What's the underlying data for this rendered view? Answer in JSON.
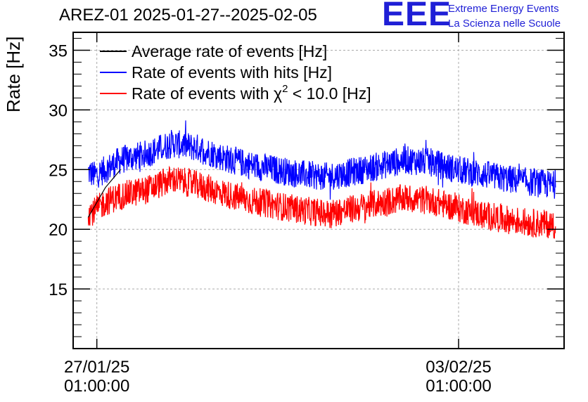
{
  "header": {
    "title": "AREZ-01 2025-01-27--2025-02-05"
  },
  "logo": {
    "mark": "EEE",
    "line1": "Extreme Energy Events",
    "line2": "La Scienza nelle Scuole"
  },
  "colors": {
    "average": "#000000",
    "hits": "#0000ff",
    "chi2": "#ff0000",
    "logo": "#1f1fd6",
    "grid": "#aaaaaa"
  },
  "chart_data": {
    "type": "line",
    "title": "AREZ-01 2025-01-27--2025-02-05",
    "ylabel": "Rate [Hz]",
    "xlabel": "",
    "ylim": [
      10,
      36.5
    ],
    "xlim": [
      "2025-01-26 14:00",
      "2025-02-05 02:00"
    ],
    "yticks": [
      15,
      20,
      25,
      30,
      35
    ],
    "xticks": [
      {
        "value": "2025-01-27 01:00:00",
        "line1": "27/01/25",
        "line2": "01:00:00"
      },
      {
        "value": "2025-02-03 01:00:00",
        "line1": "03/02/25",
        "line2": "01:00:00"
      }
    ],
    "grid": true,
    "legend_position": "top-left",
    "series": [
      {
        "name": "Average rate of events [Hz]",
        "legend_label": "Average rate of events [Hz]",
        "x": [
          "2025-01-26 21:00",
          "2025-01-27 05:00",
          "2025-01-27 12:00"
        ],
        "values": [
          21.0,
          23.5,
          25.0
        ]
      },
      {
        "name": "Rate of events with hits [Hz]",
        "legend_label": "Rate of events with hits [Hz]",
        "x": [
          "2025-01-26 21:00",
          "2025-01-27 00:00",
          "2025-01-27 05:00",
          "2025-01-27 12:00",
          "2025-01-28 00:00",
          "2025-01-28 12:00",
          "2025-01-29 00:00",
          "2025-01-29 12:00",
          "2025-01-30 00:00",
          "2025-01-30 12:00",
          "2025-01-31 00:00",
          "2025-01-31 12:00",
          "2025-02-01 00:00",
          "2025-02-01 12:00",
          "2025-02-02 00:00",
          "2025-02-02 12:00",
          "2025-02-03 00:00",
          "2025-02-03 12:00",
          "2025-02-04 00:00",
          "2025-02-04 12:00",
          "2025-02-04 22:00"
        ],
        "values": [
          24.8,
          24.5,
          25.0,
          25.8,
          26.3,
          27.2,
          26.8,
          26.0,
          25.4,
          25.0,
          24.6,
          24.4,
          24.8,
          25.3,
          25.8,
          25.6,
          25.0,
          24.6,
          24.2,
          23.9,
          23.7
        ],
        "spread": 1.2
      },
      {
        "name": "Rate of events with χ2 < 10.0 [Hz]",
        "legend_label_prefix": "Rate of events with ",
        "legend_label_symbol": "χ",
        "legend_label_sup": "2",
        "legend_label_suffix": " < 10.0 [Hz]",
        "x": [
          "2025-01-26 21:00",
          "2025-01-27 00:00",
          "2025-01-27 05:00",
          "2025-01-27 12:00",
          "2025-01-28 00:00",
          "2025-01-28 12:00",
          "2025-01-29 00:00",
          "2025-01-29 12:00",
          "2025-01-30 00:00",
          "2025-01-30 12:00",
          "2025-01-31 00:00",
          "2025-01-31 12:00",
          "2025-02-01 00:00",
          "2025-02-01 12:00",
          "2025-02-02 00:00",
          "2025-02-02 12:00",
          "2025-02-03 00:00",
          "2025-02-03 12:00",
          "2025-02-04 00:00",
          "2025-02-04 12:00",
          "2025-02-04 22:00"
        ],
        "values": [
          21.5,
          21.5,
          22.3,
          22.8,
          23.3,
          24.2,
          23.7,
          23.0,
          22.4,
          22.0,
          21.6,
          21.3,
          21.7,
          22.2,
          22.6,
          22.4,
          21.8,
          21.2,
          20.8,
          20.5,
          20.4
        ],
        "spread": 1.2
      }
    ]
  }
}
